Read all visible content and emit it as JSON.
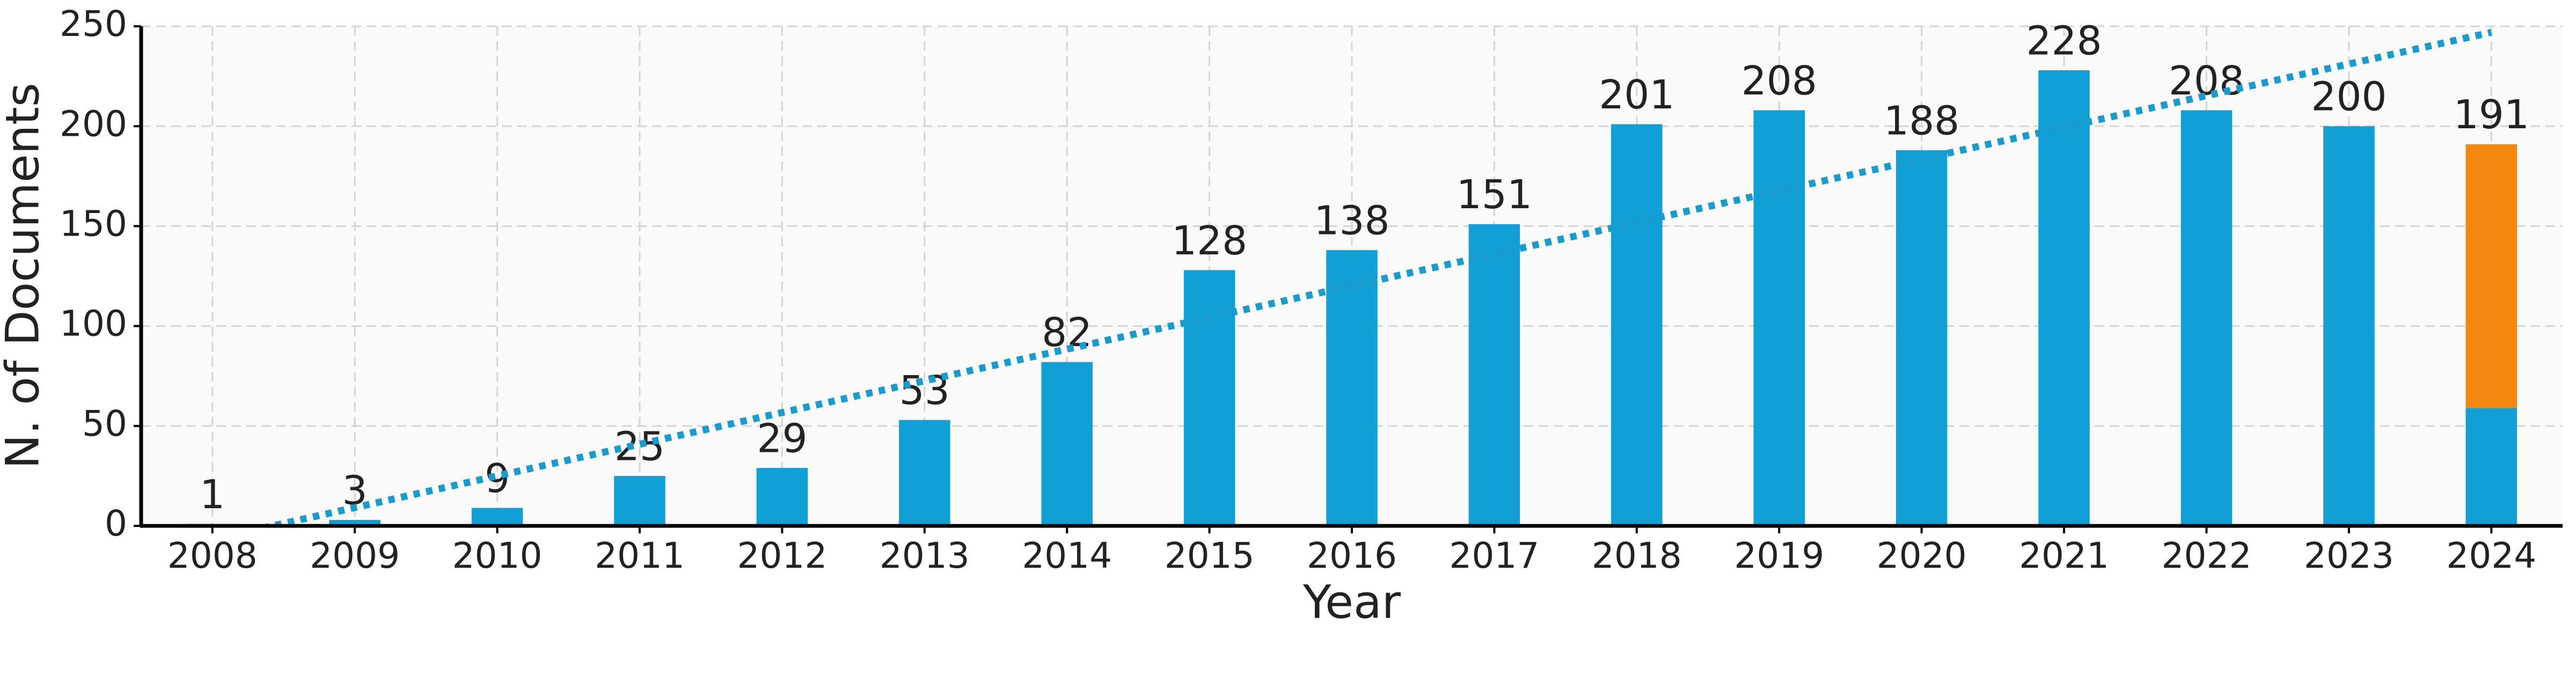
{
  "chart_data": {
    "type": "bar",
    "x_label": "Year",
    "y_label": "N. of Documents",
    "categories": [
      "2008",
      "2009",
      "2010",
      "2011",
      "2012",
      "2013",
      "2014",
      "2015",
      "2016",
      "2017",
      "2018",
      "2019",
      "2020",
      "2021",
      "2022",
      "2023",
      "2024"
    ],
    "series": [
      {
        "color": "#119fd6",
        "values": [
          1,
          3,
          9,
          25,
          29,
          53,
          82,
          128,
          138,
          151,
          201,
          208,
          188,
          228,
          208,
          200,
          59
        ]
      },
      {
        "color": "#f5870f",
        "values": [
          null,
          null,
          null,
          null,
          null,
          null,
          null,
          null,
          null,
          null,
          null,
          null,
          null,
          null,
          null,
          null,
          132
        ]
      }
    ],
    "total_labels": [
      1,
      3,
      9,
      25,
      29,
      53,
      82,
      128,
      138,
      151,
      201,
      208,
      188,
      228,
      208,
      200,
      191
    ],
    "trendline": {
      "color": "#1a9bcc",
      "x_index": [
        0,
        16
      ],
      "values": [
        -6.7,
        247
      ]
    },
    "ylim": [
      0,
      250
    ],
    "yticks": [
      0,
      50,
      100,
      150,
      200,
      250
    ],
    "grid": true
  }
}
